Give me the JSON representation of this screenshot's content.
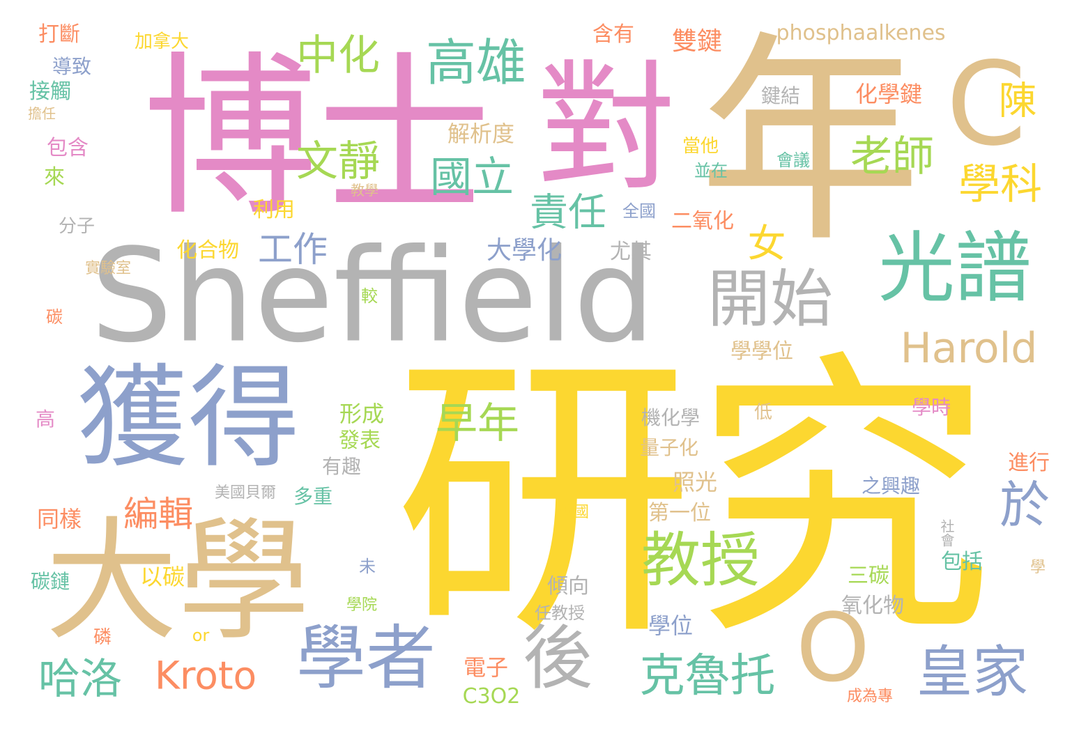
{
  "palette": {
    "pink": "#e48ac6",
    "tan": "#e0c18c",
    "gray": "#b3b3b3",
    "blue": "#8da0cb",
    "yellow": "#fcd730",
    "green": "#66c2a5",
    "lime": "#a6d854",
    "orange": "#fc8d62"
  },
  "words": [
    "博士",
    "對",
    "年",
    "C",
    "Sheffield",
    "研究",
    "獲得",
    "大學",
    "學者",
    "後",
    "O",
    "光譜",
    "開始",
    "Harold",
    "教授",
    "皇家",
    "克魯托",
    "哈洛",
    "Kroto",
    "高雄",
    "中化",
    "文靜",
    "國立",
    "老師",
    "學科",
    "陳",
    "責任",
    "工作",
    "女",
    "於",
    "早年",
    "編輯",
    "phosphaalkenes",
    "打斷",
    "加拿大",
    "含有",
    "雙鍵",
    "導致",
    "接觸",
    "擔任",
    "鍵結",
    "化學鍵",
    "解析度",
    "包含",
    "來",
    "當他",
    "並在",
    "會議",
    "教學",
    "利用",
    "分子",
    "全國",
    "二氧化",
    "化合物",
    "大學化",
    "尤其",
    "實驗室",
    "碳",
    "較",
    "學學位",
    "高",
    "形成",
    "發表",
    "有趣",
    "機化學",
    "低",
    "學時",
    "量子化",
    "進行",
    "照光",
    "之興趣",
    "美國貝爾",
    "多重",
    "同樣",
    "英國",
    "第一位",
    "社會",
    "以碳",
    "包括",
    "學",
    "未",
    "三碳",
    "碳鏈",
    "傾向",
    "學院",
    "氧化物",
    "任教授",
    "學位",
    "or",
    "磷",
    "電子",
    "C3O2",
    "成為專"
  ]
}
